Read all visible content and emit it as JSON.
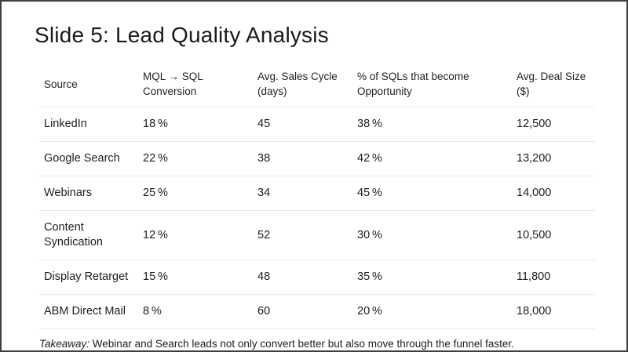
{
  "slide": {
    "title": "Slide 5: Lead Quality Analysis",
    "takeaway_label": "Takeaway:",
    "takeaway_text": " Webinar and Search leads not only convert better but also move through the funnel faster."
  },
  "colors": {
    "frame_border": "#3f3f3f",
    "text": "#1e1e1e",
    "divider": "#e9e9e9",
    "background": "#ffffff"
  },
  "table": {
    "columns": [
      "Source",
      "MQL → SQL Conversion",
      "Avg. Sales Cycle (days)",
      "% of SQLs that become Opportunity",
      "Avg. Deal Size ($)"
    ],
    "rows": [
      {
        "source": "LinkedIn",
        "mql_sql_conversion": "18 %",
        "avg_sales_cycle_days": "45",
        "sql_to_opportunity": "38 %",
        "avg_deal_size": "12,500"
      },
      {
        "source": "Google Search",
        "mql_sql_conversion": "22 %",
        "avg_sales_cycle_days": "38",
        "sql_to_opportunity": "42 %",
        "avg_deal_size": "13,200"
      },
      {
        "source": "Webinars",
        "mql_sql_conversion": "25 %",
        "avg_sales_cycle_days": "34",
        "sql_to_opportunity": "45 %",
        "avg_deal_size": "14,000"
      },
      {
        "source": "Content Syndication",
        "mql_sql_conversion": "12 %",
        "avg_sales_cycle_days": "52",
        "sql_to_opportunity": "30 %",
        "avg_deal_size": "10,500"
      },
      {
        "source": "Display Retarget",
        "mql_sql_conversion": "15 %",
        "avg_sales_cycle_days": "48",
        "sql_to_opportunity": "35 %",
        "avg_deal_size": "11,800"
      },
      {
        "source": "ABM Direct Mail",
        "mql_sql_conversion": "8 %",
        "avg_sales_cycle_days": "60",
        "sql_to_opportunity": "20 %",
        "avg_deal_size": "18,000"
      }
    ]
  }
}
